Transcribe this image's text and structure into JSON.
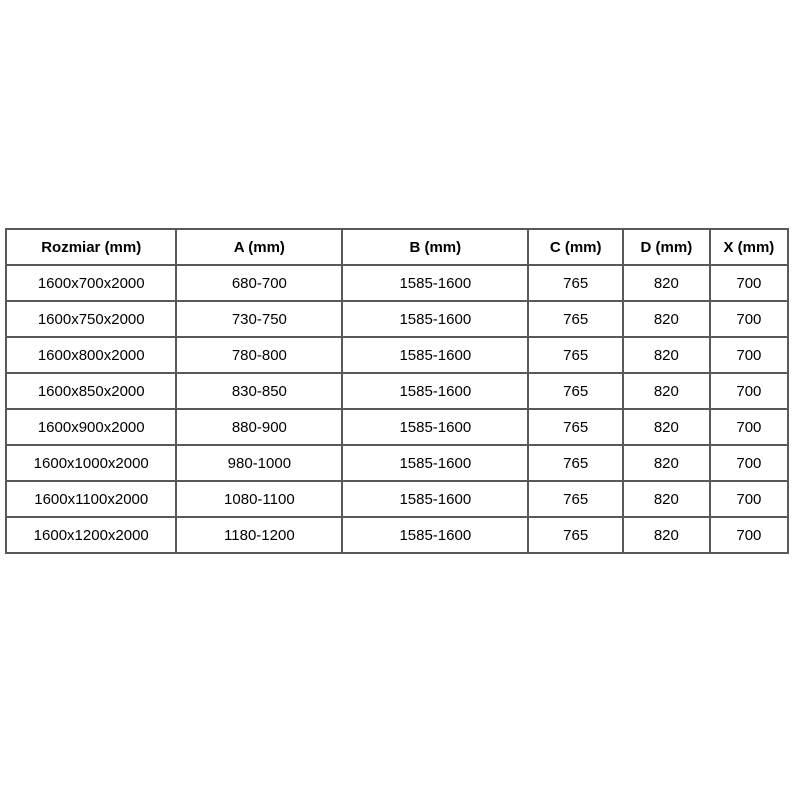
{
  "table": {
    "columns": [
      {
        "label": "Rozmiar (mm)"
      },
      {
        "label": "A (mm)"
      },
      {
        "label": "B (mm)"
      },
      {
        "label": "C (mm)"
      },
      {
        "label": "D (mm)"
      },
      {
        "label": "X (mm)"
      }
    ],
    "rows": [
      [
        "1600x700x2000",
        "680-700",
        "1585-1600",
        "765",
        "820",
        "700"
      ],
      [
        "1600x750x2000",
        "730-750",
        "1585-1600",
        "765",
        "820",
        "700"
      ],
      [
        "1600x800x2000",
        "780-800",
        "1585-1600",
        "765",
        "820",
        "700"
      ],
      [
        "1600x850x2000",
        "830-850",
        "1585-1600",
        "765",
        "820",
        "700"
      ],
      [
        "1600x900x2000",
        "880-900",
        "1585-1600",
        "765",
        "820",
        "700"
      ],
      [
        "1600x1000x2000",
        "980-1000",
        "1585-1600",
        "765",
        "820",
        "700"
      ],
      [
        "1600x1100x2000",
        "1080-1100",
        "1585-1600",
        "765",
        "820",
        "700"
      ],
      [
        "1600x1200x2000",
        "1180-1200",
        "1585-1600",
        "765",
        "820",
        "700"
      ]
    ],
    "colors": {
      "border": "#595959",
      "text": "#000000",
      "background": "#ffffff"
    }
  }
}
